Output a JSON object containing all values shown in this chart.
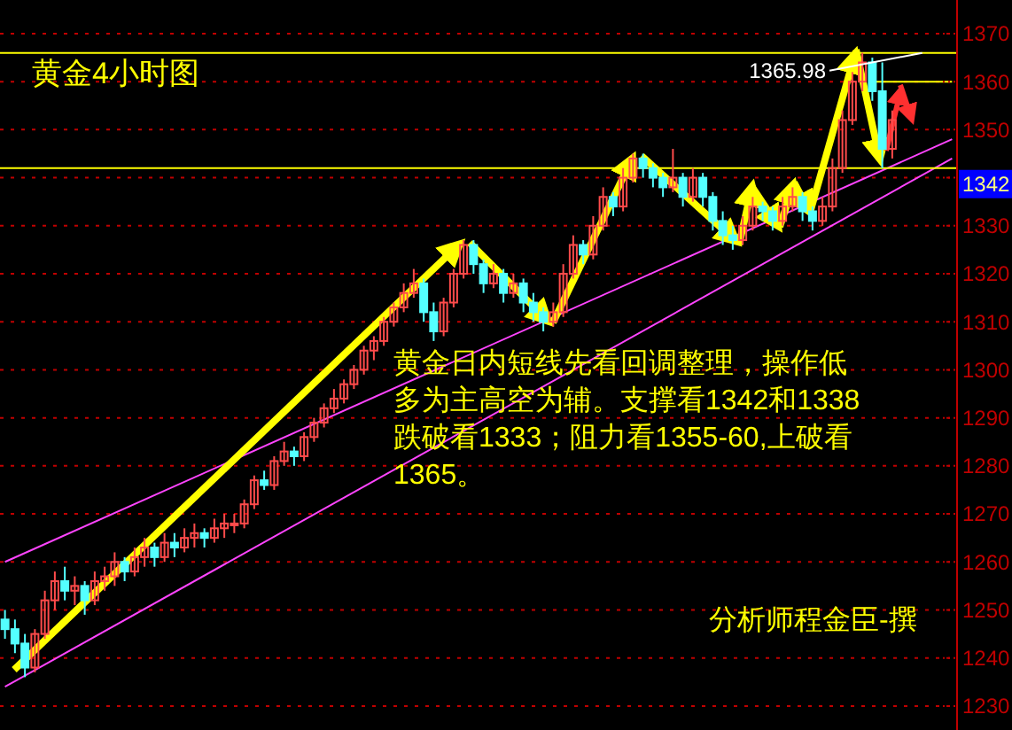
{
  "chart_data": {
    "type": "candlestick",
    "title": "黄金4小时图",
    "categories": [
      null,
      null,
      null,
      null,
      null,
      null,
      null,
      null,
      null,
      null,
      null,
      null,
      null,
      null,
      null,
      null,
      null,
      null,
      null,
      null,
      null,
      null,
      null,
      null,
      null,
      null,
      null,
      null,
      null,
      null,
      null,
      null,
      null,
      null,
      null,
      null,
      null,
      null,
      null,
      null,
      null,
      null,
      null,
      null,
      null,
      null,
      null,
      null,
      null,
      null,
      null,
      null,
      null,
      null,
      null,
      null,
      null,
      null,
      null,
      null,
      null,
      null,
      null,
      null,
      null,
      null,
      null,
      null,
      null,
      null,
      null,
      null,
      null,
      null,
      null,
      null,
      null,
      null,
      null,
      null,
      null,
      null,
      null,
      null,
      null,
      null,
      null,
      null,
      null,
      null,
      null,
      null,
      null,
      null,
      null,
      null
    ],
    "ohlc": [
      [
        1248,
        1250,
        1244,
        1246
      ],
      [
        1246,
        1248,
        1241,
        1243
      ],
      [
        1243,
        1245,
        1236,
        1238
      ],
      [
        1238,
        1246,
        1237,
        1245
      ],
      [
        1245,
        1254,
        1244,
        1252
      ],
      [
        1252,
        1258,
        1250,
        1256
      ],
      [
        1256,
        1259,
        1252,
        1254
      ],
      [
        1254,
        1257,
        1251,
        1255
      ],
      [
        1255,
        1256,
        1249,
        1252
      ],
      [
        1252,
        1258,
        1251,
        1256
      ],
      [
        1256,
        1259,
        1254,
        1257
      ],
      [
        1257,
        1262,
        1255,
        1260
      ],
      [
        1260,
        1261,
        1256,
        1258
      ],
      [
        1258,
        1263,
        1257,
        1261
      ],
      [
        1261,
        1265,
        1259,
        1263
      ],
      [
        1263,
        1264,
        1259,
        1261
      ],
      [
        1261,
        1266,
        1260,
        1264
      ],
      [
        1264,
        1266,
        1261,
        1263
      ],
      [
        1263,
        1267,
        1262,
        1265
      ],
      [
        1265,
        1268,
        1263,
        1266
      ],
      [
        1266,
        1267,
        1263,
        1265
      ],
      [
        1265,
        1269,
        1264,
        1267
      ],
      [
        1267,
        1270,
        1265,
        1268
      ],
      [
        1268,
        1270,
        1266,
        1268
      ],
      [
        1268,
        1273,
        1267,
        1272
      ],
      [
        1272,
        1278,
        1271,
        1277
      ],
      [
        1277,
        1279,
        1275,
        1276
      ],
      [
        1276,
        1282,
        1275,
        1281
      ],
      [
        1281,
        1285,
        1280,
        1283
      ],
      [
        1283,
        1284,
        1280,
        1282
      ],
      [
        1282,
        1287,
        1281,
        1286
      ],
      [
        1286,
        1290,
        1285,
        1289
      ],
      [
        1289,
        1293,
        1288,
        1292
      ],
      [
        1292,
        1296,
        1291,
        1294
      ],
      [
        1294,
        1298,
        1293,
        1297
      ],
      [
        1297,
        1301,
        1296,
        1300
      ],
      [
        1300,
        1305,
        1299,
        1304
      ],
      [
        1304,
        1307,
        1302,
        1306
      ],
      [
        1306,
        1311,
        1305,
        1310
      ],
      [
        1310,
        1314,
        1309,
        1313
      ],
      [
        1313,
        1318,
        1312,
        1316
      ],
      [
        1316,
        1321,
        1315,
        1318
      ],
      [
        1318,
        1319,
        1310,
        1312
      ],
      [
        1312,
        1314,
        1306,
        1308
      ],
      [
        1308,
        1315,
        1307,
        1314
      ],
      [
        1314,
        1321,
        1313,
        1320
      ],
      [
        1320,
        1327,
        1319,
        1326
      ],
      [
        1326,
        1327,
        1320,
        1322
      ],
      [
        1322,
        1323,
        1316,
        1318
      ],
      [
        1318,
        1322,
        1317,
        1320
      ],
      [
        1320,
        1321,
        1314,
        1316
      ],
      [
        1316,
        1320,
        1315,
        1318
      ],
      [
        1318,
        1319,
        1312,
        1314
      ],
      [
        1314,
        1316,
        1310,
        1312
      ],
      [
        1312,
        1313,
        1308,
        1310
      ],
      [
        1310,
        1314,
        1309,
        1312
      ],
      [
        1312,
        1322,
        1311,
        1320
      ],
      [
        1320,
        1328,
        1319,
        1326
      ],
      [
        1326,
        1327,
        1322,
        1324
      ],
      [
        1324,
        1332,
        1323,
        1330
      ],
      [
        1330,
        1338,
        1329,
        1336
      ],
      [
        1336,
        1337,
        1332,
        1334
      ],
      [
        1334,
        1342,
        1333,
        1340
      ],
      [
        1340,
        1345,
        1339,
        1344
      ],
      [
        1344,
        1345,
        1340,
        1342
      ],
      [
        1342,
        1343,
        1338,
        1340
      ],
      [
        1340,
        1341,
        1336,
        1338
      ],
      [
        1338,
        1346,
        1337,
        1340
      ],
      [
        1340,
        1341,
        1334,
        1336
      ],
      [
        1336,
        1342,
        1335,
        1340
      ],
      [
        1340,
        1341,
        1334,
        1336
      ],
      [
        1336,
        1337,
        1329,
        1331
      ],
      [
        1331,
        1333,
        1326,
        1328
      ],
      [
        1328,
        1330,
        1325,
        1327
      ],
      [
        1327,
        1332,
        1326,
        1330
      ],
      [
        1330,
        1336,
        1329,
        1334
      ],
      [
        1334,
        1335,
        1331,
        1333
      ],
      [
        1333,
        1334,
        1329,
        1331
      ],
      [
        1331,
        1336,
        1330,
        1334
      ],
      [
        1334,
        1338,
        1333,
        1336
      ],
      [
        1336,
        1337,
        1331,
        1333
      ],
      [
        1333,
        1334,
        1329,
        1331
      ],
      [
        1331,
        1336,
        1330,
        1334
      ],
      [
        1334,
        1344,
        1333,
        1342
      ],
      [
        1342,
        1354,
        1341,
        1352
      ],
      [
        1352,
        1362,
        1351,
        1360
      ],
      [
        1360,
        1366,
        1358,
        1364
      ],
      [
        1364,
        1365,
        1356,
        1358
      ],
      [
        1358,
        1364,
        1342,
        1346
      ],
      [
        1346,
        1354,
        1344,
        1352
      ],
      null,
      null,
      null,
      null,
      null,
      null
    ],
    "series": [
      {
        "type": "line",
        "color": "#ff44ff",
        "values": [
          1234,
          null,
          null,
          null,
          null,
          null,
          null,
          null,
          null,
          null,
          null,
          null,
          null,
          null,
          null,
          null,
          null,
          null,
          null,
          null,
          null,
          null,
          null,
          null,
          null,
          null,
          null,
          null,
          null,
          null,
          null,
          null,
          null,
          null,
          null,
          null,
          null,
          null,
          null,
          null,
          null,
          null,
          null,
          null,
          null,
          null,
          null,
          null,
          null,
          null,
          null,
          null,
          null,
          null,
          null,
          null,
          null,
          null,
          null,
          null,
          null,
          null,
          null,
          null,
          null,
          null,
          null,
          null,
          null,
          null,
          null,
          null,
          null,
          null,
          null,
          null,
          null,
          null,
          null,
          null,
          null,
          null,
          null,
          null,
          null,
          null,
          null,
          null,
          null,
          null,
          null,
          null,
          null,
          null,
          null,
          1344
        ]
      },
      {
        "type": "line",
        "color": "#ff44ff",
        "values": [
          1260,
          null,
          null,
          null,
          null,
          null,
          null,
          null,
          null,
          null,
          null,
          null,
          null,
          null,
          null,
          null,
          null,
          null,
          null,
          null,
          null,
          null,
          null,
          null,
          null,
          null,
          null,
          null,
          null,
          null,
          null,
          null,
          null,
          null,
          null,
          null,
          null,
          null,
          null,
          null,
          null,
          null,
          null,
          null,
          null,
          null,
          null,
          null,
          null,
          null,
          null,
          null,
          null,
          null,
          null,
          null,
          null,
          null,
          null,
          null,
          null,
          null,
          null,
          null,
          null,
          null,
          null,
          null,
          null,
          null,
          null,
          null,
          null,
          null,
          null,
          null,
          null,
          null,
          null,
          null,
          null,
          null,
          null,
          null,
          null,
          null,
          null,
          null,
          null,
          null,
          null,
          null,
          null,
          null,
          null,
          1348
        ]
      },
      {
        "type": "line",
        "color": "#ffff00",
        "values": [
          null,
          null,
          null,
          null,
          null,
          null,
          null,
          null,
          null,
          null,
          null,
          null,
          null,
          null,
          null,
          null,
          null,
          null,
          null,
          null,
          null,
          null,
          null,
          null,
          null,
          null,
          null,
          null,
          null,
          null,
          null,
          null,
          null,
          null,
          null,
          null,
          null,
          null,
          null,
          null,
          null,
          null,
          null,
          null,
          null,
          null,
          null,
          null,
          null,
          null,
          null,
          null,
          null,
          null,
          null,
          null,
          null,
          null,
          null,
          null,
          null,
          null,
          null,
          null,
          null,
          null,
          null,
          null,
          null,
          null,
          null,
          null,
          null,
          null,
          null,
          null,
          null,
          null,
          null,
          null,
          null,
          null,
          null,
          null,
          null,
          null,
          null,
          1360,
          null,
          null,
          null,
          null,
          null,
          null,
          null,
          1360
        ]
      }
    ],
    "ylim": [
      1225,
      1377
    ],
    "yticks": [
      1230,
      1240,
      1250,
      1260,
      1270,
      1280,
      1290,
      1300,
      1310,
      1320,
      1330,
      {
        "value": 1340,
        "label": null
      },
      1350,
      1360,
      1370
    ],
    "grid": "y",
    "ref_lines": [
      {
        "axis": "y",
        "value": 1365.98,
        "color": "#ffff00"
      },
      {
        "axis": "y",
        "value": 1342,
        "label": "1342",
        "color": "#ffff00"
      }
    ],
    "annotations": [
      {
        "text": "1365.98",
        "y": 1365.98
      },
      "黄金日内短线先看回调整理，操作低",
      "多为主高空为辅。支撑看1342和1338",
      "跌破看1333；阻力看1355-60,上破看",
      "1365。",
      "分析师程金臣-撰"
    ]
  }
}
